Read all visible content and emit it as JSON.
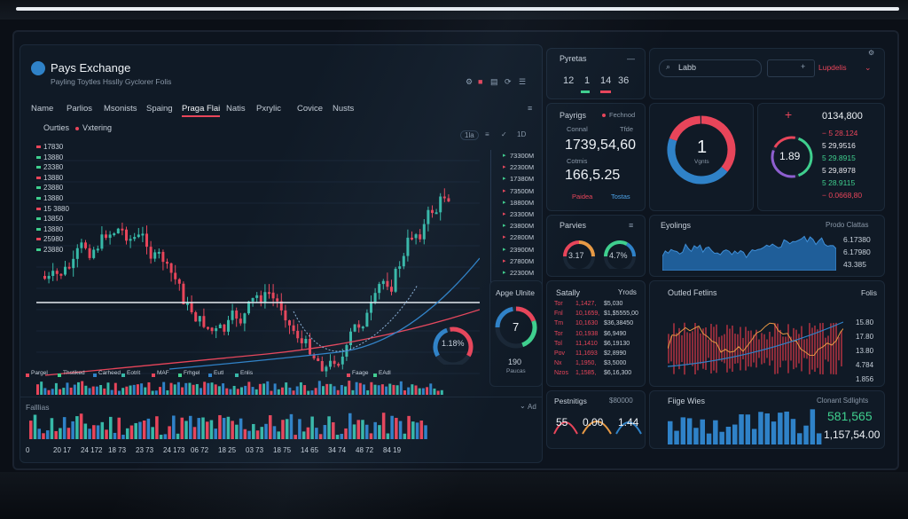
{
  "app": {
    "title": "Pays Exchange",
    "subtitle": "Payling  Toytles  Hsslly  Gyclorer  Folis"
  },
  "top_icons": [
    "settings-icon",
    "alert-icon",
    "chart-icon",
    "refresh-icon",
    "help-icon",
    "menu-icon"
  ],
  "tabs": [
    "Name",
    "Parlios",
    "Msonists",
    "Spaing",
    "Praga Flai",
    "Natis",
    "Pxrylic",
    "Covice",
    "Nusts"
  ],
  "active_tab": "Praga Flai",
  "chart_header": {
    "left": "Ourties",
    "legend": "Vxtering"
  },
  "chart_controls": [
    "1la",
    "≡",
    "✓",
    "1D"
  ],
  "price_ticks": [
    "17830",
    "13880",
    "23380",
    "13880",
    "23880",
    "13880",
    "15 3880",
    "13850",
    "13880",
    "25980",
    "23880"
  ],
  "right_ladder": [
    "73300M",
    "22300M",
    "17380M",
    "73500M",
    "18800M",
    "23300M",
    "23800M",
    "22800M",
    "23900M",
    "27800M",
    "22300M"
  ],
  "volume_legend": [
    "Pargel",
    "Thstiked",
    "Carheed",
    "Eotrit",
    "MAF",
    "Frhgel",
    "Eutl",
    "Enlis",
    "Faage",
    "EAdl"
  ],
  "bottom_chart": {
    "label": "Falllias",
    "dropdown": "Ad",
    "x_ticks": [
      "0",
      "20 17",
      "24 172",
      "18 73",
      "23 73",
      "24 173",
      "06 72",
      "18 25",
      "03 73",
      "18 75",
      "14 65",
      "34 74",
      "48 72",
      "84 19"
    ]
  },
  "gauge_small": {
    "value": "1.18%"
  },
  "pyretas": {
    "title": "Pyretas",
    "values": [
      "12",
      "1",
      "14",
      "36"
    ]
  },
  "search": {
    "placeholder": "Labb",
    "button": "Lupdelis"
  },
  "payrigs": {
    "title": "Payrigs",
    "tag": "Fechnod",
    "sub_left": "Connal",
    "sub_right": "Tfde",
    "main": "1739,54,60",
    "second_label": "Cotmis",
    "second": "166,5.25",
    "foot_left": "Paidea",
    "foot_right": "Tostas"
  },
  "donut_big": {
    "value": "1",
    "label": "Vgnts"
  },
  "price_panel": {
    "top": "0134,800",
    "rows": [
      "− 5 28.124",
      "5 29,9516",
      "5 29.8915",
      "5 29,8978",
      "5 28.9115",
      "− 0.0668,80"
    ],
    "gauge": "1.89"
  },
  "parvies": {
    "title": "Parvies",
    "g1": "3.17",
    "g2": "4.7%"
  },
  "eynings": {
    "title": "Eyolings",
    "right_title": "Prodo Clattas",
    "values": [
      "6.17380",
      "6.17980",
      "43.385"
    ]
  },
  "gauge_mid": {
    "title": "Apge Ulnite",
    "value": "7",
    "bottom": "190",
    "sub": "Paucas"
  },
  "satiaily": {
    "title": "Satally",
    "right": "Yrods",
    "rows": [
      {
        "k": "Tor",
        "a": "1,1427,",
        "b": "$5,030"
      },
      {
        "k": "Fnl",
        "a": "10,1659,",
        "b": "$1,$5555,00"
      },
      {
        "k": "Tm",
        "a": "10,1630",
        "b": "$36,38450"
      },
      {
        "k": "Tor",
        "a": "10,1938",
        "b": "$6,9490"
      },
      {
        "k": "Tol",
        "a": "11,1410",
        "b": "$6,19130"
      },
      {
        "k": "Pov",
        "a": "11,1693",
        "b": "$2,8990"
      },
      {
        "k": "Nx",
        "a": "1,1950,",
        "b": "$3,5000"
      },
      {
        "k": "Nzos",
        "a": "1,1585,",
        "b": "$6,16,300"
      }
    ]
  },
  "outled": {
    "title": "Outled Fetlins",
    "right": "Folis",
    "values": [
      "15.80",
      "17.80",
      "13.80",
      "4.784",
      "1.856"
    ]
  },
  "pestnitigs": {
    "title": "Pestnitigs",
    "tag": "$80000",
    "values": [
      "55",
      "0.00",
      "1.44"
    ]
  },
  "fiige": {
    "title": "Fiige Wies",
    "right_title": "Clonant Sdlights",
    "value1": "581,565",
    "value2": "1,157,54.00"
  },
  "colors": {
    "red": "#e8455a",
    "green": "#3fcf8e",
    "blue": "#2f82c8",
    "teal": "#37b9a8"
  }
}
